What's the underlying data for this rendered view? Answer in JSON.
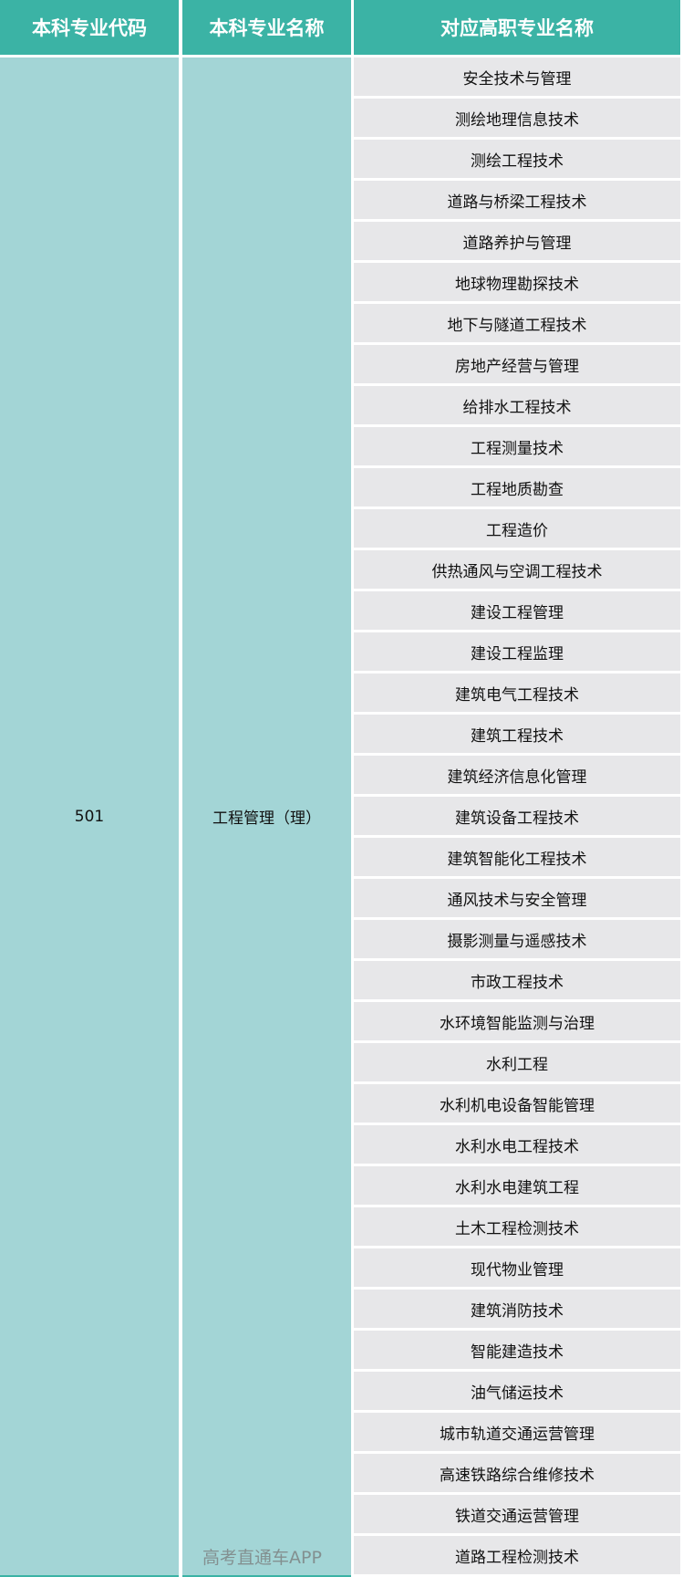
{
  "header": {
    "col1": "本科专业代码",
    "col2": "本科专业名称",
    "col3": "对应高职专业名称"
  },
  "major_code": "501",
  "major_name": "工程管理（理）",
  "vocational_majors": [
    "安全技术与管理",
    "测绘地理信息技术",
    "测绘工程技术",
    "道路与桥梁工程技术",
    "道路养护与管理",
    "地球物理勘探技术",
    "地下与隧道工程技术",
    "房地产经营与管理",
    "给排水工程技术",
    "工程测量技术",
    "工程地质勘查",
    "工程造价",
    "供热通风与空调工程技术",
    "建设工程管理",
    "建设工程监理",
    "建筑电气工程技术",
    "建筑工程技术",
    "建筑经济信息化管理",
    "建筑设备工程技术",
    "建筑智能化工程技术",
    "通风技术与安全管理",
    "摄影测量与遥感技术",
    "市政工程技术",
    "水环境智能监测与治理",
    "水利工程",
    "水利机电设备智能管理",
    "水利水电工程技术",
    "水利水电建筑工程",
    "土木工程检测技术",
    "现代物业管理",
    "建筑消防技术",
    "智能建造技术",
    "油气储运技术",
    "城市轨道交通运营管理",
    "高速铁路综合维修技术",
    "铁道交通运营管理",
    "道路工程检测技术"
  ],
  "watermark": "高考直通车APP",
  "colors": {
    "header": "#3bb3a5",
    "merged_cell": "#a3d5d6",
    "row": "#e7e7e9"
  }
}
